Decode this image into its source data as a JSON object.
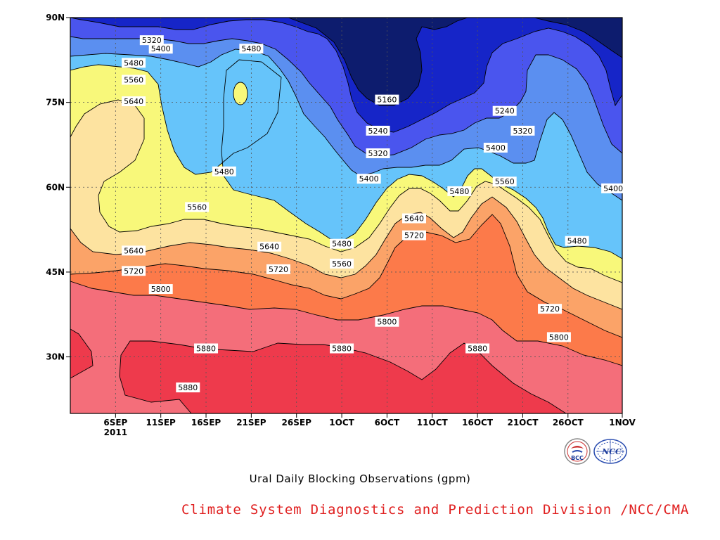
{
  "chart_data": {
    "type": "contour",
    "title": "Ural Daily Blocking Observations (gpm)",
    "x": {
      "ticks": [
        "6SEP",
        "11SEP",
        "16SEP",
        "21SEP",
        "26SEP",
        "1OCT",
        "6OCT",
        "11OCT",
        "16OCT",
        "21OCT",
        "26OCT",
        "1NOV"
      ],
      "first_tick_year": "2011",
      "start": "2011-09-01",
      "end": "2011-11-01"
    },
    "y": {
      "ticks": [
        "30N",
        "45N",
        "60N",
        "75N",
        "90N"
      ],
      "tick_values": [
        30,
        45,
        60,
        75,
        90
      ],
      "range": [
        20,
        90
      ]
    },
    "contour_levels": [
      5160,
      5240,
      5320,
      5400,
      5480,
      5560,
      5640,
      5720,
      5800,
      5880
    ],
    "fill_colors": [
      "#0d1c6e",
      "#1625c8",
      "#4a55ee",
      "#5b8ff0",
      "#66c4fa",
      "#f8f87a",
      "#fde3a0",
      "#fba368",
      "#fc7a4a",
      "#f46e7a",
      "#ee3a4c"
    ],
    "contour_labels": [
      {
        "text": "5320",
        "date": "2011-09-10",
        "lat": 86
      },
      {
        "text": "5400",
        "date": "2011-09-11",
        "lat": 84.5
      },
      {
        "text": "5480",
        "date": "2011-09-08",
        "lat": 82
      },
      {
        "text": "5560",
        "date": "2011-09-08",
        "lat": 79
      },
      {
        "text": "5640",
        "date": "2011-09-08",
        "lat": 75.2
      },
      {
        "text": "5480",
        "date": "2011-09-21",
        "lat": 84.5
      },
      {
        "text": "5160",
        "date": "2011-10-06",
        "lat": 75.5
      },
      {
        "text": "5240",
        "date": "2011-10-05",
        "lat": 70
      },
      {
        "text": "5320",
        "date": "2011-10-05",
        "lat": 66
      },
      {
        "text": "5400",
        "date": "2011-10-04",
        "lat": 61.5
      },
      {
        "text": "5240",
        "date": "2011-10-19",
        "lat": 73.5
      },
      {
        "text": "5320",
        "date": "2011-10-21",
        "lat": 70
      },
      {
        "text": "5400",
        "date": "2011-10-18",
        "lat": 67
      },
      {
        "text": "5480",
        "date": "2011-09-18",
        "lat": 62.8
      },
      {
        "text": "5480",
        "date": "2011-10-14",
        "lat": 59.3
      },
      {
        "text": "5560",
        "date": "2011-10-19",
        "lat": 61
      },
      {
        "text": "5400",
        "date": "2011-10-31",
        "lat": 59.8
      },
      {
        "text": "5560",
        "date": "2011-09-15",
        "lat": 56.5
      },
      {
        "text": "5640",
        "date": "2011-10-09",
        "lat": 54.5
      },
      {
        "text": "5720",
        "date": "2011-10-09",
        "lat": 51.5
      },
      {
        "text": "5480",
        "date": "2011-10-01",
        "lat": 50
      },
      {
        "text": "5480",
        "date": "2011-10-27",
        "lat": 50.5
      },
      {
        "text": "5640",
        "date": "2011-09-08",
        "lat": 48.8
      },
      {
        "text": "5640",
        "date": "2011-09-23",
        "lat": 49.5
      },
      {
        "text": "5560",
        "date": "2011-10-01",
        "lat": 46.5
      },
      {
        "text": "5720",
        "date": "2011-09-08",
        "lat": 45.2
      },
      {
        "text": "5720",
        "date": "2011-09-24",
        "lat": 45.5
      },
      {
        "text": "5800",
        "date": "2011-09-11",
        "lat": 42
      },
      {
        "text": "5720",
        "date": "2011-10-24",
        "lat": 38.5
      },
      {
        "text": "5800",
        "date": "2011-10-06",
        "lat": 36.2
      },
      {
        "text": "5800",
        "date": "2011-10-25",
        "lat": 33.5
      },
      {
        "text": "5880",
        "date": "2011-09-16",
        "lat": 31.5
      },
      {
        "text": "5880",
        "date": "2011-10-01",
        "lat": 31.5
      },
      {
        "text": "5880",
        "date": "2011-10-16",
        "lat": 31.5
      },
      {
        "text": "5880",
        "date": "2011-09-14",
        "lat": 24.6
      }
    ]
  },
  "logos": [
    {
      "name": "bcc-logo",
      "label": "BCC"
    },
    {
      "name": "ncc-logo",
      "label": "NCC"
    }
  ],
  "caption_main": "Ural Daily Blocking Observations (gpm)",
  "caption_org": "Climate System Diagnostics and Prediction Division /NCC/CMA"
}
